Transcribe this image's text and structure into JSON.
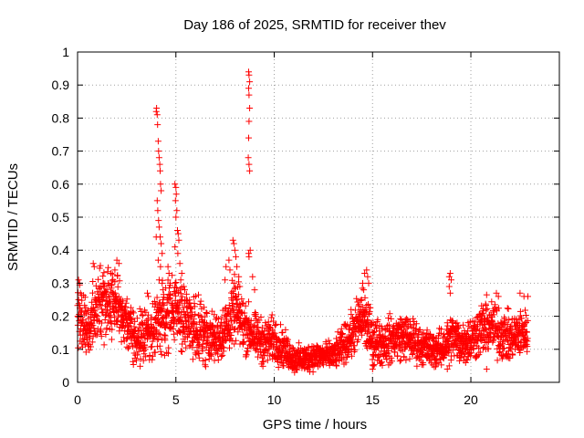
{
  "chart_data": {
    "type": "scatter",
    "title": "Day 186 of 2025, SRMTID for receiver thev",
    "xlabel": "GPS time / hours",
    "ylabel": "SRMTID / TECUs",
    "xlim": [
      0,
      24.5
    ],
    "ylim": [
      0,
      1
    ],
    "grid": true,
    "marker": "+",
    "marker_color": "#ff0000",
    "x_ticks": [
      0,
      5,
      10,
      15,
      20
    ],
    "x_tick_labels": [
      "0",
      "5",
      "10",
      "15",
      "20"
    ],
    "y_ticks": [
      0,
      0.1,
      0.2,
      0.3,
      0.4,
      0.5,
      0.6,
      0.7,
      0.8,
      0.9,
      1
    ],
    "y_tick_labels": [
      "0",
      "0.1",
      "0.2",
      "0.3",
      "0.4",
      "0.5",
      "0.6",
      "0.7",
      "0.8",
      "0.9",
      "1"
    ],
    "baseline_profile": {
      "x": [
        0,
        0.5,
        1,
        1.5,
        2,
        2.5,
        3,
        3.5,
        4,
        4.5,
        5,
        5.5,
        6,
        6.5,
        7,
        7.5,
        8,
        8.5,
        9,
        9.5,
        10,
        10.5,
        11,
        11.5,
        12,
        12.5,
        13,
        13.5,
        14,
        14.5,
        15,
        15.5,
        16,
        16.5,
        17,
        17.5,
        18,
        18.5,
        19,
        19.5,
        20,
        20.5,
        21,
        21.5,
        22,
        22.5,
        22.9
      ],
      "y": [
        0.2,
        0.16,
        0.22,
        0.24,
        0.25,
        0.18,
        0.13,
        0.15,
        0.17,
        0.2,
        0.22,
        0.18,
        0.17,
        0.15,
        0.13,
        0.16,
        0.22,
        0.17,
        0.14,
        0.12,
        0.13,
        0.1,
        0.07,
        0.07,
        0.08,
        0.08,
        0.08,
        0.11,
        0.15,
        0.2,
        0.13,
        0.12,
        0.13,
        0.14,
        0.13,
        0.11,
        0.1,
        0.1,
        0.14,
        0.12,
        0.13,
        0.16,
        0.17,
        0.15,
        0.13,
        0.15,
        0.15
      ],
      "spread": [
        0.07,
        0.06,
        0.07,
        0.08,
        0.07,
        0.06,
        0.05,
        0.06,
        0.06,
        0.08,
        0.08,
        0.07,
        0.07,
        0.06,
        0.05,
        0.06,
        0.07,
        0.06,
        0.05,
        0.05,
        0.05,
        0.04,
        0.03,
        0.03,
        0.03,
        0.03,
        0.03,
        0.04,
        0.05,
        0.07,
        0.05,
        0.05,
        0.05,
        0.05,
        0.05,
        0.04,
        0.04,
        0.04,
        0.05,
        0.05,
        0.05,
        0.06,
        0.06,
        0.06,
        0.05,
        0.05,
        0.05
      ]
    },
    "points_per_hour": 120,
    "spike_points": [
      {
        "x": 0.05,
        "y": 0.31
      },
      {
        "x": 0.1,
        "y": 0.3
      },
      {
        "x": 0.15,
        "y": 0.27
      },
      {
        "x": 0.8,
        "y": 0.36
      },
      {
        "x": 0.85,
        "y": 0.35
      },
      {
        "x": 1.7,
        "y": 0.33
      },
      {
        "x": 2.0,
        "y": 0.37
      },
      {
        "x": 2.1,
        "y": 0.36
      },
      {
        "x": 1.9,
        "y": 0.34
      },
      {
        "x": 3.55,
        "y": 0.27
      },
      {
        "x": 3.6,
        "y": 0.26
      },
      {
        "x": 4.0,
        "y": 0.82
      },
      {
        "x": 4.02,
        "y": 0.83
      },
      {
        "x": 4.05,
        "y": 0.81
      },
      {
        "x": 4.07,
        "y": 0.78
      },
      {
        "x": 4.1,
        "y": 0.73
      },
      {
        "x": 4.12,
        "y": 0.7
      },
      {
        "x": 4.15,
        "y": 0.68
      },
      {
        "x": 4.18,
        "y": 0.66
      },
      {
        "x": 4.2,
        "y": 0.64
      },
      {
        "x": 4.22,
        "y": 0.6
      },
      {
        "x": 4.25,
        "y": 0.58
      },
      {
        "x": 4.05,
        "y": 0.55
      },
      {
        "x": 4.08,
        "y": 0.52
      },
      {
        "x": 4.12,
        "y": 0.49
      },
      {
        "x": 4.15,
        "y": 0.47
      },
      {
        "x": 4.2,
        "y": 0.44
      },
      {
        "x": 4.25,
        "y": 0.42
      },
      {
        "x": 4.3,
        "y": 0.39
      },
      {
        "x": 4.0,
        "y": 0.44
      },
      {
        "x": 4.1,
        "y": 0.37
      },
      {
        "x": 4.22,
        "y": 0.35
      },
      {
        "x": 4.3,
        "y": 0.3
      },
      {
        "x": 4.35,
        "y": 0.28
      },
      {
        "x": 4.15,
        "y": 0.31
      },
      {
        "x": 4.6,
        "y": 0.35
      },
      {
        "x": 4.65,
        "y": 0.33
      },
      {
        "x": 4.7,
        "y": 0.3
      },
      {
        "x": 4.95,
        "y": 0.6
      },
      {
        "x": 5.0,
        "y": 0.59
      },
      {
        "x": 5.02,
        "y": 0.57
      },
      {
        "x": 4.98,
        "y": 0.55
      },
      {
        "x": 5.05,
        "y": 0.52
      },
      {
        "x": 5.0,
        "y": 0.5
      },
      {
        "x": 5.08,
        "y": 0.46
      },
      {
        "x": 5.12,
        "y": 0.45
      },
      {
        "x": 5.15,
        "y": 0.43
      },
      {
        "x": 4.95,
        "y": 0.41
      },
      {
        "x": 5.1,
        "y": 0.39
      },
      {
        "x": 5.2,
        "y": 0.36
      },
      {
        "x": 5.3,
        "y": 0.33
      },
      {
        "x": 5.25,
        "y": 0.31
      },
      {
        "x": 5.4,
        "y": 0.29
      },
      {
        "x": 5.45,
        "y": 0.28
      },
      {
        "x": 7.5,
        "y": 0.31
      },
      {
        "x": 7.55,
        "y": 0.35
      },
      {
        "x": 7.7,
        "y": 0.37
      },
      {
        "x": 7.75,
        "y": 0.34
      },
      {
        "x": 7.9,
        "y": 0.43
      },
      {
        "x": 7.95,
        "y": 0.42
      },
      {
        "x": 8.0,
        "y": 0.4
      },
      {
        "x": 8.05,
        "y": 0.38
      },
      {
        "x": 8.1,
        "y": 0.35
      },
      {
        "x": 8.2,
        "y": 0.32
      },
      {
        "x": 8.25,
        "y": 0.29
      },
      {
        "x": 8.7,
        "y": 0.94
      },
      {
        "x": 8.72,
        "y": 0.93
      },
      {
        "x": 8.75,
        "y": 0.91
      },
      {
        "x": 8.7,
        "y": 0.89
      },
      {
        "x": 8.72,
        "y": 0.87
      },
      {
        "x": 8.75,
        "y": 0.83
      },
      {
        "x": 8.72,
        "y": 0.79
      },
      {
        "x": 8.7,
        "y": 0.74
      },
      {
        "x": 8.68,
        "y": 0.68
      },
      {
        "x": 8.72,
        "y": 0.66
      },
      {
        "x": 8.75,
        "y": 0.64
      },
      {
        "x": 8.7,
        "y": 0.39
      },
      {
        "x": 8.72,
        "y": 0.38
      },
      {
        "x": 8.78,
        "y": 0.4
      },
      {
        "x": 8.9,
        "y": 0.32
      },
      {
        "x": 9.0,
        "y": 0.28
      },
      {
        "x": 14.5,
        "y": 0.3
      },
      {
        "x": 14.6,
        "y": 0.33
      },
      {
        "x": 14.7,
        "y": 0.34
      },
      {
        "x": 14.75,
        "y": 0.32
      },
      {
        "x": 14.8,
        "y": 0.3
      },
      {
        "x": 14.55,
        "y": 0.28
      },
      {
        "x": 15.0,
        "y": 0.04
      },
      {
        "x": 15.05,
        "y": 0.05
      },
      {
        "x": 18.9,
        "y": 0.32
      },
      {
        "x": 18.95,
        "y": 0.33
      },
      {
        "x": 19.0,
        "y": 0.31
      },
      {
        "x": 18.9,
        "y": 0.29
      },
      {
        "x": 18.95,
        "y": 0.27
      },
      {
        "x": 18.8,
        "y": 0.04
      },
      {
        "x": 18.9,
        "y": 0.05
      },
      {
        "x": 20.8,
        "y": 0.04
      },
      {
        "x": 21.3,
        "y": 0.27
      },
      {
        "x": 21.4,
        "y": 0.26
      },
      {
        "x": 22.5,
        "y": 0.27
      },
      {
        "x": 22.7,
        "y": 0.26
      },
      {
        "x": 22.9,
        "y": 0.26
      }
    ]
  }
}
